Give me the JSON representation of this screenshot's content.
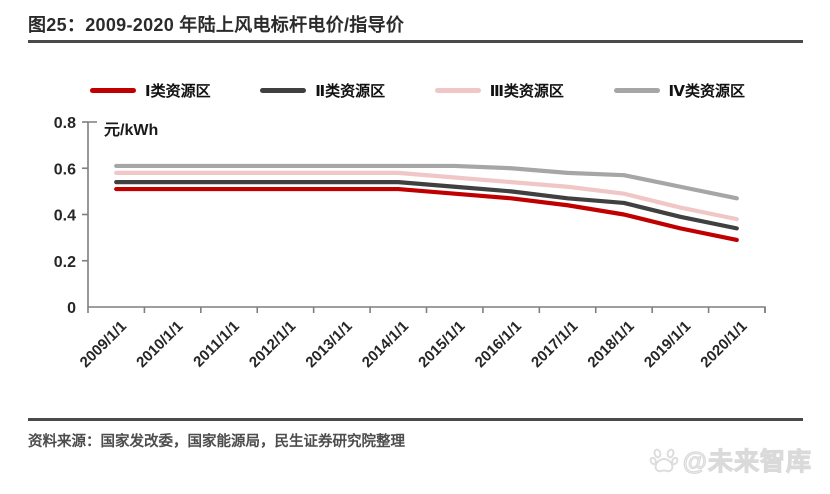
{
  "header": {
    "title": "图25：2009-2020 年陆上风电标杆电价/指导价"
  },
  "chart_data": {
    "type": "line",
    "title": "2009-2020 年陆上风电标杆电价/指导价",
    "unit_label": "元/kWh",
    "xlabel": "",
    "ylabel": "元/kWh",
    "ylim": [
      0,
      0.8
    ],
    "y_ticks": [
      0,
      0.2,
      0.4,
      0.6,
      0.8
    ],
    "y_tick_labels": [
      "0",
      "0.2",
      "0.4",
      "0.6",
      "0.8"
    ],
    "grid": false,
    "legend_position": "top",
    "axis_color": "#7f7f7f",
    "tick_text_color": "#262626",
    "categories": [
      "2009/1/1",
      "2010/1/1",
      "2011/1/1",
      "2012/1/1",
      "2013/1/1",
      "2014/1/1",
      "2015/1/1",
      "2016/1/1",
      "2017/1/1",
      "2018/1/1",
      "2019/1/1",
      "2020/1/1"
    ],
    "series": [
      {
        "name": "Ⅰ类资源区",
        "color": "#c00000",
        "values": [
          0.51,
          0.51,
          0.51,
          0.51,
          0.51,
          0.51,
          0.49,
          0.47,
          0.44,
          0.4,
          0.34,
          0.29
        ]
      },
      {
        "name": "Ⅱ类资源区",
        "color": "#404040",
        "values": [
          0.54,
          0.54,
          0.54,
          0.54,
          0.54,
          0.54,
          0.52,
          0.5,
          0.47,
          0.45,
          0.39,
          0.34
        ]
      },
      {
        "name": "Ⅲ类资源区",
        "color": "#f0c6c6",
        "values": [
          0.58,
          0.58,
          0.58,
          0.58,
          0.58,
          0.58,
          0.56,
          0.54,
          0.52,
          0.49,
          0.43,
          0.38
        ]
      },
      {
        "name": "Ⅳ类资源区",
        "color": "#a6a6a6",
        "values": [
          0.61,
          0.61,
          0.61,
          0.61,
          0.61,
          0.61,
          0.61,
          0.6,
          0.58,
          0.57,
          0.52,
          0.47
        ]
      }
    ]
  },
  "footer": {
    "source": "资料来源：国家发改委，国家能源局，民生证券研究院整理",
    "watermark": "@未来智库"
  }
}
